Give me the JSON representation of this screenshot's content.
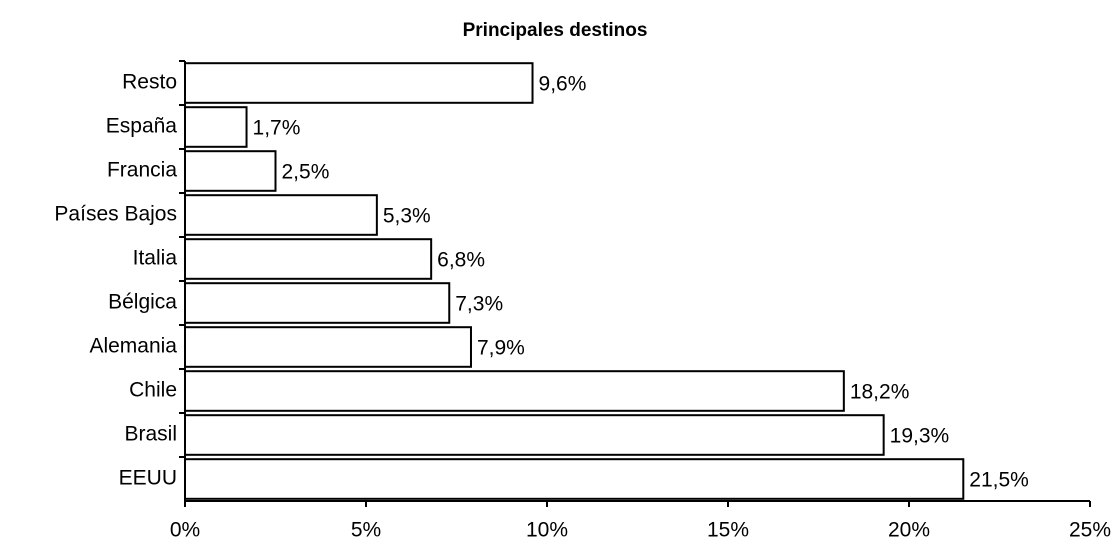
{
  "chart_data": {
    "type": "bar",
    "orientation": "horizontal",
    "title": "Principales destinos",
    "categories": [
      "Resto",
      "España",
      "Francia",
      "Países Bajos",
      "Italia",
      "Bélgica",
      "Alemania",
      "Chile",
      "Brasil",
      "EEUU"
    ],
    "values": [
      9.6,
      1.7,
      2.5,
      5.3,
      6.8,
      7.3,
      7.9,
      18.2,
      19.3,
      21.5
    ],
    "value_labels": [
      "9,6%",
      "1,7%",
      "2,5%",
      "5,3%",
      "6,8%",
      "7,3%",
      "7,9%",
      "18,2%",
      "19,3%",
      "21,5%"
    ],
    "color": "#ffffff",
    "xlim": [
      0,
      25
    ],
    "xticks": [
      {
        "value": 0,
        "label": "0%"
      },
      {
        "value": 5,
        "label": "5%"
      },
      {
        "value": 10,
        "label": "10%"
      },
      {
        "value": 15,
        "label": "15%"
      },
      {
        "value": 20,
        "label": "20%"
      },
      {
        "value": 25,
        "label": "25%"
      }
    ],
    "grid": false
  }
}
